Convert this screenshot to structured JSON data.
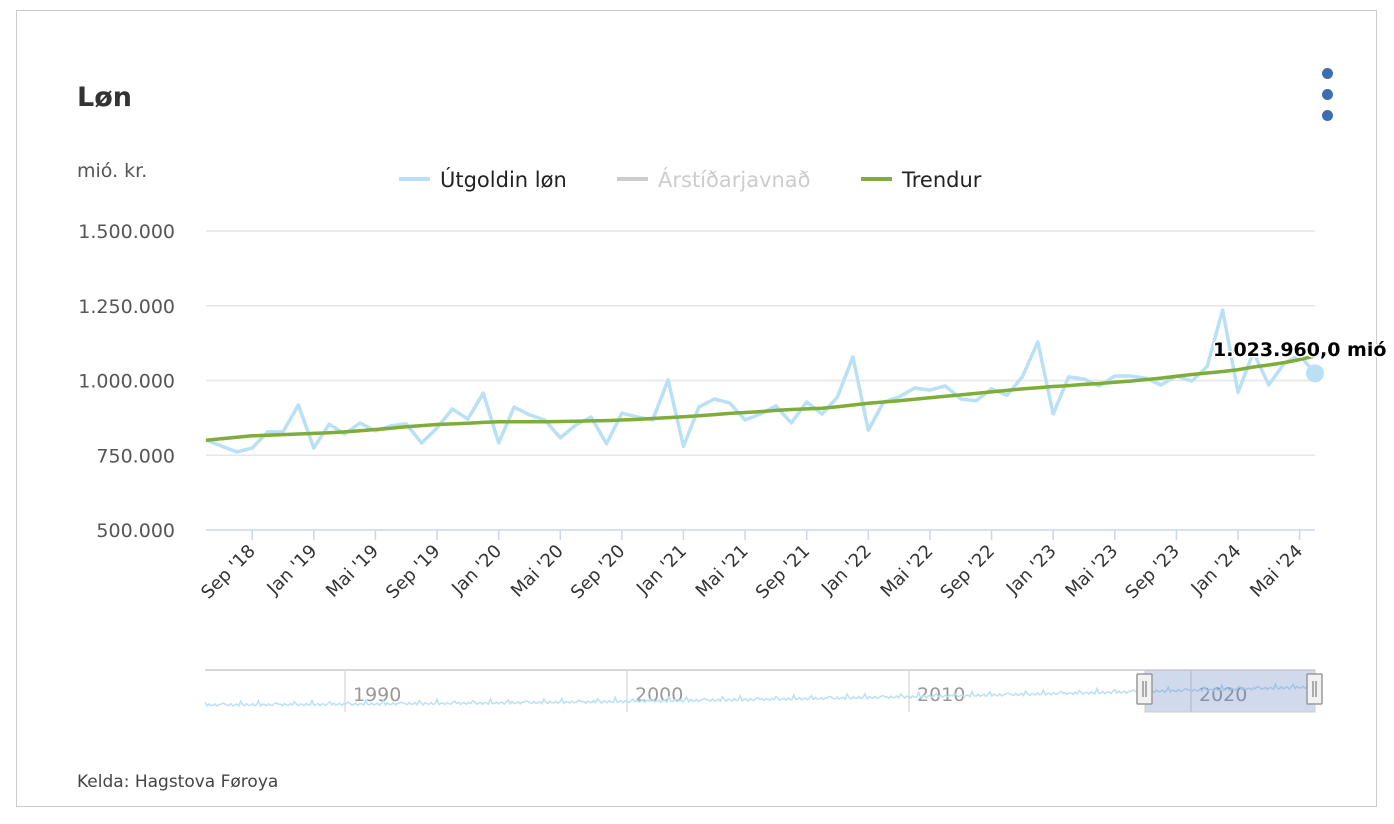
{
  "title": "Løn",
  "unit_label": "mió. kr.",
  "source": "Kelda: Hagstova Føroya",
  "menu_icon": "more-vertical-icon",
  "colors": {
    "series": "#b9e0f5",
    "trend": "#7fad3a",
    "hidden": "#cccccc",
    "menu": "#3d6fb0",
    "grid": "#e6e6e6"
  },
  "chart_data": {
    "type": "line",
    "title": "Løn",
    "ylabel": "mió. kr.",
    "ylim": [
      500000,
      1500000
    ],
    "y_ticks": [
      "500.000",
      "750.000",
      "1.000.000",
      "1.250.000",
      "1.500.000"
    ],
    "y_tick_values": [
      500000,
      750000,
      1000000,
      1250000,
      1500000
    ],
    "x_start": "Jun '18",
    "x_end": "Jun '24",
    "x_ticks": [
      {
        "i": 3,
        "label": "Sep '18"
      },
      {
        "i": 7,
        "label": "Jan '19"
      },
      {
        "i": 11,
        "label": "Mai '19"
      },
      {
        "i": 15,
        "label": "Sep '19"
      },
      {
        "i": 19,
        "label": "Jan '20"
      },
      {
        "i": 23,
        "label": "Mai '20"
      },
      {
        "i": 27,
        "label": "Sep '20"
      },
      {
        "i": 31,
        "label": "Jan '21"
      },
      {
        "i": 35,
        "label": "Mai '21"
      },
      {
        "i": 39,
        "label": "Sep '21"
      },
      {
        "i": 43,
        "label": "Jan '22"
      },
      {
        "i": 47,
        "label": "Mai '22"
      },
      {
        "i": 51,
        "label": "Sep '22"
      },
      {
        "i": 55,
        "label": "Jan '23"
      },
      {
        "i": 59,
        "label": "Mai '23"
      },
      {
        "i": 63,
        "label": "Sep '23"
      },
      {
        "i": 67,
        "label": "Jan '24"
      },
      {
        "i": 71,
        "label": "Mai '24"
      }
    ],
    "legend": [
      {
        "name": "Útgoldin løn",
        "visible": true
      },
      {
        "name": "Árstíðarjavnað",
        "visible": false
      },
      {
        "name": "Trendur",
        "visible": true
      }
    ],
    "legend_placement": "top-center",
    "series": [
      {
        "name": "Útgoldin løn",
        "values": [
          801000,
          781000,
          761000,
          774000,
          828000,
          828000,
          918000,
          774000,
          854000,
          821000,
          858000,
          831000,
          848000,
          855000,
          791000,
          841000,
          905000,
          871000,
          958000,
          791000,
          911000,
          885000,
          868000,
          808000,
          851000,
          878000,
          788000,
          891000,
          878000,
          868000,
          1002000,
          780000,
          911000,
          938000,
          925000,
          868000,
          888000,
          915000,
          858000,
          928000,
          888000,
          945000,
          1079000,
          834000,
          928000,
          945000,
          975000,
          968000,
          982000,
          938000,
          932000,
          972000,
          951000,
          1012000,
          1129000,
          888000,
          1012000,
          1005000,
          982000,
          1015000,
          1015000,
          1008000,
          985000,
          1015000,
          998000,
          1047000,
          1236000,
          960000,
          1095000,
          985000,
          1058000,
          1085000,
          1023960
        ]
      },
      {
        "name": "Trendur",
        "values": [
          800000,
          805000,
          810000,
          815000,
          817000,
          819000,
          821000,
          823000,
          825000,
          828000,
          832000,
          836000,
          840000,
          845000,
          849000,
          853000,
          855000,
          857000,
          860000,
          862000,
          862000,
          862000,
          862000,
          863000,
          864000,
          865000,
          866000,
          868000,
          870000,
          873000,
          876000,
          879000,
          882000,
          886000,
          890000,
          893000,
          896000,
          900000,
          903000,
          905000,
          907000,
          912000,
          918000,
          924000,
          928000,
          932000,
          937000,
          942000,
          947000,
          952000,
          957000,
          962000,
          967000,
          972000,
          976000,
          980000,
          983000,
          987000,
          990000,
          994000,
          998000,
          1003000,
          1008000,
          1014000,
          1020000,
          1025000,
          1030000,
          1036000,
          1045000,
          1052000,
          1060000,
          1070000,
          1082000
        ]
      }
    ],
    "data_label": "1.023.960,0 mió",
    "navigator": {
      "labels": [
        "1990",
        "2000",
        "2010",
        "2020"
      ],
      "selected_range": [
        "Jun '18",
        "Jun '24"
      ]
    }
  }
}
